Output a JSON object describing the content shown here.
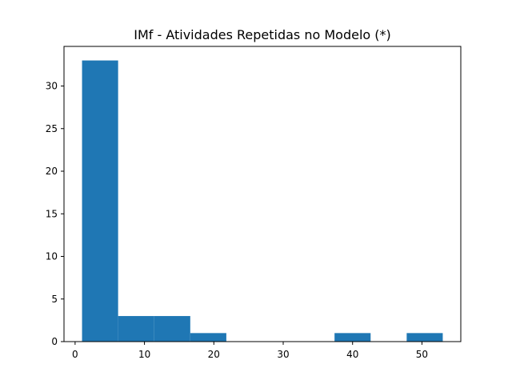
{
  "chart_data": {
    "type": "bar",
    "title": "IMf - Atividades Repetidas no Modelo (*)",
    "xlabel": "",
    "ylabel": "",
    "bins": [
      {
        "x0": 1.0,
        "x1": 6.2,
        "count": 33
      },
      {
        "x0": 6.2,
        "x1": 11.4,
        "count": 3
      },
      {
        "x0": 11.4,
        "x1": 16.6,
        "count": 3
      },
      {
        "x0": 16.6,
        "x1": 21.8,
        "count": 1
      },
      {
        "x0": 21.8,
        "x1": 27.0,
        "count": 0
      },
      {
        "x0": 27.0,
        "x1": 32.2,
        "count": 0
      },
      {
        "x0": 32.2,
        "x1": 37.4,
        "count": 0
      },
      {
        "x0": 37.4,
        "x1": 42.6,
        "count": 1
      },
      {
        "x0": 42.6,
        "x1": 47.8,
        "count": 0
      },
      {
        "x0": 47.8,
        "x1": 53.0,
        "count": 1
      }
    ],
    "xlim": [
      -1.6,
      55.6
    ],
    "ylim": [
      0,
      34.65
    ],
    "xticks": [
      0,
      10,
      20,
      30,
      40,
      50
    ],
    "yticks": [
      0,
      5,
      10,
      15,
      20,
      25,
      30
    ],
    "bar_color": "#1f77b4",
    "grid": false
  }
}
